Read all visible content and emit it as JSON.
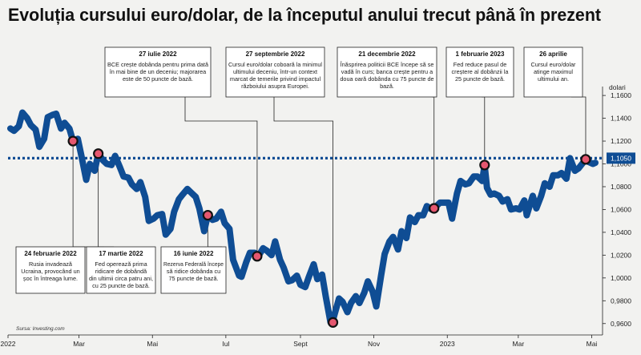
{
  "chart_data": {
    "type": "line",
    "title": "Evoluția cursului euro/dolar, de la începutul anului trecut până în prezent",
    "ylabel": "dolari",
    "source": "Sursa: Investing.com",
    "ylim": [
      0.95,
      1.165
    ],
    "xlim": [
      "2022-01-01",
      "2023-05-10"
    ],
    "y_ticks": [
      "1,1600",
      "1,1400",
      "1,1200",
      "1,1000",
      "1,0800",
      "1,0600",
      "1,0400",
      "1,0200",
      "1,0000",
      "0,9800",
      "0,9600"
    ],
    "y_tick_values": [
      1.16,
      1.14,
      1.12,
      1.1,
      1.08,
      1.06,
      1.04,
      1.02,
      1.0,
      0.98,
      0.96
    ],
    "x_ticks": [
      {
        "date": "2022-01-01",
        "label": "2022"
      },
      {
        "date": "2022-03-01",
        "label": "Mar"
      },
      {
        "date": "2022-05-01",
        "label": "Mai"
      },
      {
        "date": "2022-07-01",
        "label": "Iul"
      },
      {
        "date": "2022-09-01",
        "label": "Sept"
      },
      {
        "date": "2022-11-01",
        "label": "Nov"
      },
      {
        "date": "2023-01-01",
        "label": "2023"
      },
      {
        "date": "2023-03-01",
        "label": "Mar"
      },
      {
        "date": "2023-05-01",
        "label": "Mai"
      }
    ],
    "reference_line": {
      "value": 1.105,
      "label": "1,1050"
    },
    "series": [
      {
        "color": "#0f4d94",
        "points": [
          [
            "2022-01-03",
            1.131
          ],
          [
            "2022-01-06",
            1.129
          ],
          [
            "2022-01-10",
            1.133
          ],
          [
            "2022-01-13",
            1.145
          ],
          [
            "2022-01-17",
            1.14
          ],
          [
            "2022-01-20",
            1.134
          ],
          [
            "2022-01-24",
            1.13
          ],
          [
            "2022-01-27",
            1.115
          ],
          [
            "2022-01-31",
            1.122
          ],
          [
            "2022-02-03",
            1.141
          ],
          [
            "2022-02-07",
            1.143
          ],
          [
            "2022-02-10",
            1.144
          ],
          [
            "2022-02-14",
            1.131
          ],
          [
            "2022-02-17",
            1.136
          ],
          [
            "2022-02-21",
            1.131
          ],
          [
            "2022-02-24",
            1.12
          ],
          [
            "2022-02-28",
            1.122
          ],
          [
            "2022-03-03",
            1.107
          ],
          [
            "2022-03-07",
            1.086
          ],
          [
            "2022-03-10",
            1.1
          ],
          [
            "2022-03-14",
            1.094
          ],
          [
            "2022-03-17",
            1.109
          ],
          [
            "2022-03-21",
            1.103
          ],
          [
            "2022-03-24",
            1.1
          ],
          [
            "2022-03-28",
            1.099
          ],
          [
            "2022-03-31",
            1.107
          ],
          [
            "2022-04-04",
            1.097
          ],
          [
            "2022-04-07",
            1.089
          ],
          [
            "2022-04-11",
            1.088
          ],
          [
            "2022-04-14",
            1.082
          ],
          [
            "2022-04-18",
            1.078
          ],
          [
            "2022-04-21",
            1.084
          ],
          [
            "2022-04-25",
            1.071
          ],
          [
            "2022-04-28",
            1.05
          ],
          [
            "2022-05-02",
            1.052
          ],
          [
            "2022-05-05",
            1.055
          ],
          [
            "2022-05-09",
            1.056
          ],
          [
            "2022-05-12",
            1.038
          ],
          [
            "2022-05-16",
            1.043
          ],
          [
            "2022-05-19",
            1.058
          ],
          [
            "2022-05-23",
            1.069
          ],
          [
            "2022-05-26",
            1.073
          ],
          [
            "2022-05-30",
            1.078
          ],
          [
            "2022-06-02",
            1.075
          ],
          [
            "2022-06-06",
            1.071
          ],
          [
            "2022-06-09",
            1.061
          ],
          [
            "2022-06-13",
            1.041
          ],
          [
            "2022-06-16",
            1.055
          ],
          [
            "2022-06-20",
            1.051
          ],
          [
            "2022-06-23",
            1.052
          ],
          [
            "2022-06-27",
            1.058
          ],
          [
            "2022-06-30",
            1.048
          ],
          [
            "2022-07-04",
            1.043
          ],
          [
            "2022-07-07",
            1.016
          ],
          [
            "2022-07-12",
            1.002
          ],
          [
            "2022-07-14",
            1.001
          ],
          [
            "2022-07-18",
            1.014
          ],
          [
            "2022-07-21",
            1.022
          ],
          [
            "2022-07-25",
            1.022
          ],
          [
            "2022-07-28",
            1.019
          ],
          [
            "2022-08-01",
            1.026
          ],
          [
            "2022-08-04",
            1.024
          ],
          [
            "2022-08-08",
            1.02
          ],
          [
            "2022-08-11",
            1.032
          ],
          [
            "2022-08-15",
            1.016
          ],
          [
            "2022-08-18",
            1.009
          ],
          [
            "2022-08-22",
            0.997
          ],
          [
            "2022-08-25",
            0.998
          ],
          [
            "2022-08-29",
            1.002
          ],
          [
            "2022-09-01",
            0.994
          ],
          [
            "2022-09-05",
            0.992
          ],
          [
            "2022-09-08",
            1.001
          ],
          [
            "2022-09-12",
            1.012
          ],
          [
            "2022-09-15",
            0.999
          ],
          [
            "2022-09-19",
            1.003
          ],
          [
            "2022-09-22",
            0.984
          ],
          [
            "2022-09-26",
            0.961
          ],
          [
            "2022-09-28",
            0.963
          ],
          [
            "2022-10-03",
            0.982
          ],
          [
            "2022-10-06",
            0.979
          ],
          [
            "2022-10-10",
            0.97
          ],
          [
            "2022-10-13",
            0.978
          ],
          [
            "2022-10-17",
            0.984
          ],
          [
            "2022-10-20",
            0.978
          ],
          [
            "2022-10-24",
            0.987
          ],
          [
            "2022-10-27",
            0.997
          ],
          [
            "2022-10-31",
            0.988
          ],
          [
            "2022-11-03",
            0.975
          ],
          [
            "2022-11-07",
            1.002
          ],
          [
            "2022-11-10",
            1.021
          ],
          [
            "2022-11-14",
            1.032
          ],
          [
            "2022-11-17",
            1.036
          ],
          [
            "2022-11-21",
            1.025
          ],
          [
            "2022-11-24",
            1.041
          ],
          [
            "2022-11-28",
            1.035
          ],
          [
            "2022-12-01",
            1.053
          ],
          [
            "2022-12-05",
            1.049
          ],
          [
            "2022-12-08",
            1.055
          ],
          [
            "2022-12-12",
            1.055
          ],
          [
            "2022-12-15",
            1.063
          ],
          [
            "2022-12-19",
            1.06
          ],
          [
            "2022-12-21",
            1.061
          ],
          [
            "2022-12-26",
            1.066
          ],
          [
            "2022-12-29",
            1.066
          ],
          [
            "2023-01-02",
            1.066
          ],
          [
            "2023-01-05",
            1.052
          ],
          [
            "2023-01-09",
            1.074
          ],
          [
            "2023-01-12",
            1.085
          ],
          [
            "2023-01-16",
            1.082
          ],
          [
            "2023-01-19",
            1.083
          ],
          [
            "2023-01-23",
            1.089
          ],
          [
            "2023-01-26",
            1.089
          ],
          [
            "2023-01-30",
            1.085
          ],
          [
            "2023-02-01",
            1.099
          ],
          [
            "2023-02-03",
            1.079
          ],
          [
            "2023-02-06",
            1.073
          ],
          [
            "2023-02-09",
            1.074
          ],
          [
            "2023-02-13",
            1.072
          ],
          [
            "2023-02-16",
            1.067
          ],
          [
            "2023-02-20",
            1.069
          ],
          [
            "2023-02-23",
            1.06
          ],
          [
            "2023-02-27",
            1.061
          ],
          [
            "2023-03-02",
            1.06
          ],
          [
            "2023-03-06",
            1.068
          ],
          [
            "2023-03-08",
            1.055
          ],
          [
            "2023-03-13",
            1.072
          ],
          [
            "2023-03-16",
            1.061
          ],
          [
            "2023-03-20",
            1.072
          ],
          [
            "2023-03-23",
            1.083
          ],
          [
            "2023-03-27",
            1.08
          ],
          [
            "2023-03-30",
            1.09
          ],
          [
            "2023-04-03",
            1.09
          ],
          [
            "2023-04-06",
            1.092
          ],
          [
            "2023-04-10",
            1.087
          ],
          [
            "2023-04-13",
            1.105
          ],
          [
            "2023-04-17",
            1.094
          ],
          [
            "2023-04-20",
            1.096
          ],
          [
            "2023-04-26",
            1.104
          ],
          [
            "2023-04-28",
            1.102
          ],
          [
            "2023-05-02",
            1.1
          ],
          [
            "2023-05-04",
            1.101
          ]
        ]
      }
    ],
    "markers": [
      {
        "date": "2022-02-24",
        "value": 1.12
      },
      {
        "date": "2022-03-17",
        "value": 1.109
      },
      {
        "date": "2022-06-16",
        "value": 1.055
      },
      {
        "date": "2022-07-27",
        "value": 1.019
      },
      {
        "date": "2022-09-28",
        "value": 0.961
      },
      {
        "date": "2022-12-21",
        "value": 1.061
      },
      {
        "date": "2023-02-01",
        "value": 1.099
      },
      {
        "date": "2023-04-26",
        "value": 1.104
      }
    ],
    "annotations": [
      {
        "date": "27 iulie 2022",
        "text": [
          "BCE crește dobânda pentru prima dată",
          "în mai bine de un deceniu; majorarea",
          "este de 50 puncte de bază."
        ]
      },
      {
        "date": "27 septembrie 2022",
        "text": [
          "Cursul euro/dolar coboară la minimul",
          "ultimului deceniu, într-un context",
          "marcat de temerile privind impactul",
          "războiului asupra Europei."
        ]
      },
      {
        "date": "21 decembrie 2022",
        "text": [
          "Înăsprirea politicii BCE începe să se",
          "vadă în curs; banca crește pentru a",
          "doua oară dobânda cu 75 puncte de",
          "bază."
        ]
      },
      {
        "date": "1 februarie 2023",
        "text": [
          "Fed reduce pasul de",
          "creștere al dobânzii la",
          "25 puncte de bază."
        ]
      },
      {
        "date": "26 aprilie",
        "text": [
          "Cursul euro/dolar",
          "atinge maximul",
          "ultimului an."
        ]
      },
      {
        "date": "24 februarie 2022",
        "text": [
          "Rusia invadează",
          "Ucraina, provocând un",
          "șoc în întreaga lume."
        ]
      },
      {
        "date": "17 martie 2022",
        "text": [
          "Fed operează prima",
          "ridicare de dobândă",
          "din ultimii circa patru ani,",
          "cu 25 puncte de bază."
        ]
      },
      {
        "date": "16 iunie 2022",
        "text": [
          "Rezerva Federală începe",
          "să ridice dobânda cu",
          "75 puncte de bază."
        ]
      }
    ]
  }
}
